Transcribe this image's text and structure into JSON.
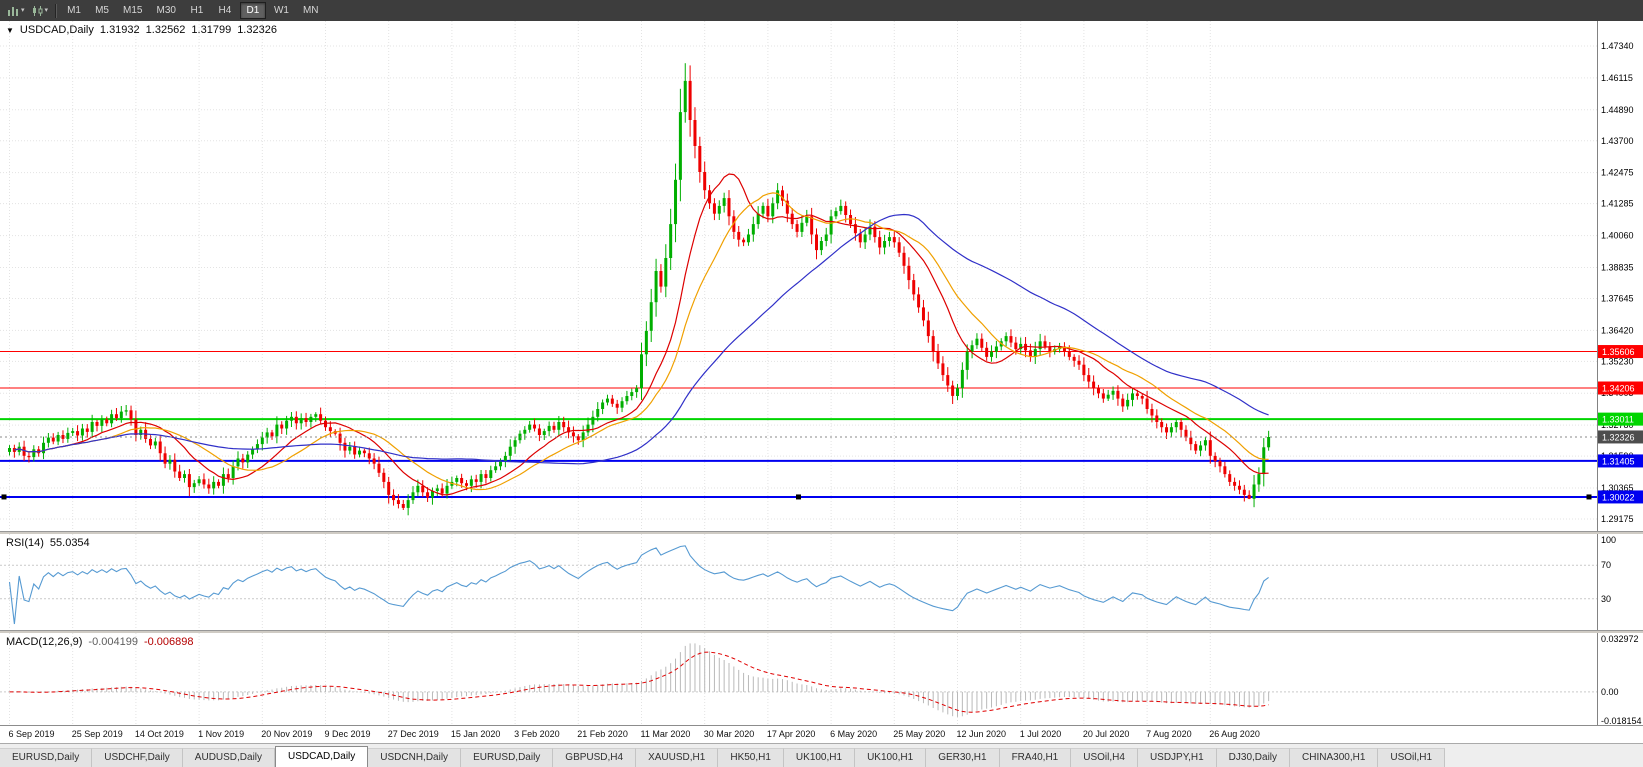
{
  "toolbar": {
    "timeframes": [
      "M1",
      "M5",
      "M15",
      "M30",
      "H1",
      "H4",
      "D1",
      "W1",
      "MN"
    ],
    "active_timeframe": "D1",
    "icons": [
      {
        "name": "bar-chart-icon"
      },
      {
        "name": "candlestick-chart-icon"
      }
    ]
  },
  "chart_header": {
    "menu_icon": "▼",
    "symbol": "USDCAD,Daily",
    "open": "1.31932",
    "high": "1.32562",
    "low": "1.31799",
    "close": "1.32326"
  },
  "chart_data": {
    "type": "candlestick",
    "symbol": "USDCAD",
    "timeframe": "Daily",
    "up_color": "#00AE00",
    "down_color": "#EE0000",
    "price_axis": {
      "min": 1.29175,
      "max": 1.4734,
      "ticks": [
        "1.47340",
        "1.46115",
        "1.44890",
        "1.43700",
        "1.42475",
        "1.41285",
        "1.40060",
        "1.38835",
        "1.37645",
        "1.36420",
        "1.35230",
        "1.34005",
        "1.32780",
        "1.31590",
        "1.30365",
        "1.29175"
      ]
    },
    "x_labels": [
      "6 Sep 2019",
      "25 Sep 2019",
      "14 Oct 2019",
      "1 Nov 2019",
      "20 Nov 2019",
      "9 Dec 2019",
      "27 Dec 2019",
      "15 Jan 2020",
      "3 Feb 2020",
      "21 Feb 2020",
      "11 Mar 2020",
      "30 Mar 2020",
      "17 Apr 2020",
      "6 May 2020",
      "25 May 2020",
      "12 Jun 2020",
      "1 Jul 2020",
      "20 Jul 2020",
      "7 Aug 2020",
      "26 Aug 2020"
    ],
    "bars_per_label": 13,
    "closes": [
      1.319,
      1.3175,
      1.3195,
      1.316,
      1.3155,
      1.3185,
      1.317,
      1.321,
      1.323,
      1.3215,
      1.324,
      1.3225,
      1.3248,
      1.3255,
      1.3238,
      1.3265,
      1.3252,
      1.329,
      1.3275,
      1.33,
      1.3285,
      1.332,
      1.3305,
      1.333,
      1.3335,
      1.33,
      1.324,
      1.326,
      1.3225,
      1.32,
      1.3215,
      1.317,
      1.313,
      1.3145,
      1.31,
      1.3075,
      1.309,
      1.304,
      1.3055,
      1.307,
      1.305,
      1.3035,
      1.306,
      1.3045,
      1.309,
      1.3075,
      1.312,
      1.315,
      1.3135,
      1.3165,
      1.3185,
      1.3205,
      1.323,
      1.325,
      1.3235,
      1.328,
      1.3265,
      1.3295,
      1.331,
      1.3285,
      1.3305,
      1.329,
      1.331,
      1.332,
      1.3295,
      1.327,
      1.3255,
      1.3245,
      1.321,
      1.318,
      1.3195,
      1.3165,
      1.318,
      1.317,
      1.315,
      1.313,
      1.3095,
      1.306,
      1.301,
      1.299,
      1.2975,
      1.296,
      1.299,
      1.302,
      1.3045,
      1.302,
      1.3,
      1.3025,
      1.3035,
      1.3015,
      1.3045,
      1.306,
      1.3075,
      1.3055,
      1.3045,
      1.307,
      1.306,
      1.309,
      1.3075,
      1.3105,
      1.312,
      1.314,
      1.316,
      1.3195,
      1.322,
      1.3245,
      1.326,
      1.328,
      1.3265,
      1.324,
      1.3255,
      1.3275,
      1.326,
      1.329,
      1.327,
      1.325,
      1.3235,
      1.322,
      1.325,
      1.328,
      1.331,
      1.334,
      1.3365,
      1.338,
      1.336,
      1.3345,
      1.337,
      1.339,
      1.3405,
      1.342,
      1.355,
      1.364,
      1.375,
      1.387,
      1.381,
      1.392,
      1.405,
      1.422,
      1.448,
      1.46,
      1.445,
      1.435,
      1.425,
      1.418,
      1.413,
      1.409,
      1.412,
      1.415,
      1.408,
      1.402,
      1.399,
      1.398,
      1.401,
      1.405,
      1.409,
      1.412,
      1.408,
      1.413,
      1.418,
      1.414,
      1.409,
      1.405,
      1.402,
      1.4055,
      1.408,
      1.401,
      1.395,
      1.3985,
      1.401,
      1.408,
      1.41,
      1.412,
      1.4085,
      1.405,
      1.4015,
      1.398,
      1.401,
      1.404,
      1.4,
      1.396,
      1.3985,
      1.4,
      1.398,
      1.394,
      1.389,
      1.3835,
      1.378,
      1.373,
      1.368,
      1.362,
      1.356,
      1.3515,
      1.347,
      1.343,
      1.339,
      1.342,
      1.349,
      1.356,
      1.3585,
      1.361,
      1.3575,
      1.354,
      1.356,
      1.358,
      1.36,
      1.362,
      1.3595,
      1.357,
      1.359,
      1.3565,
      1.354,
      1.357,
      1.36,
      1.358,
      1.356,
      1.357,
      1.358,
      1.356,
      1.354,
      1.3525,
      1.351,
      1.347,
      1.3445,
      1.342,
      1.34,
      1.338,
      1.3395,
      1.341,
      1.338,
      1.335,
      1.3375,
      1.34,
      1.339,
      1.338,
      1.334,
      1.3315,
      1.329,
      1.327,
      1.325,
      1.327,
      1.329,
      1.326,
      1.323,
      1.3205,
      1.318,
      1.32,
      1.322,
      1.316,
      1.314,
      1.312,
      1.309,
      1.306,
      1.3045,
      1.303,
      1.301,
      1.2995,
      1.305,
      1.309,
      1.3193,
      1.32326
    ],
    "last_bar": {
      "open": 1.31932,
      "high": 1.32562,
      "low": 1.31799,
      "close": 1.32326
    },
    "wick_overrides": {
      "81": {
        "low": 1.2952
      },
      "139": {
        "high": 1.4668
      },
      "255": {
        "low": 1.2994
      }
    },
    "ma_lines": [
      {
        "name": "fast-ma",
        "period": 13,
        "color": "#DD0000"
      },
      {
        "name": "mid-ma",
        "period": 21,
        "color": "#F0A000"
      },
      {
        "name": "slow-ma",
        "period": 50,
        "color": "#3030C8"
      }
    ],
    "hlines": [
      {
        "value": 1.35606,
        "label": "1.35606",
        "color": "#FF0000",
        "thickness": 1,
        "selected": false
      },
      {
        "value": 1.34206,
        "label": "1.34206",
        "color": "#FF0000",
        "thickness": 1,
        "selected": false
      },
      {
        "value": 1.33011,
        "label": "1.33011",
        "color": "#00D500",
        "thickness": 2,
        "selected": false
      },
      {
        "value": 1.31405,
        "label": "1.31405",
        "color": "#0000F0",
        "thickness": 2,
        "selected": false
      },
      {
        "value": 1.30022,
        "label": "1.30022",
        "color": "#0000F0",
        "thickness": 2,
        "selected": true
      }
    ],
    "current_price": {
      "value": 1.32326,
      "label": "1.32326",
      "label_bg": "#4d4d4d",
      "line_color": "#888888"
    }
  },
  "rsi_panel": {
    "label": "RSI(14)",
    "value": "55.0354",
    "period": 14,
    "line_color": "#569AD2",
    "range": [
      0,
      100
    ],
    "levels": [
      70,
      30
    ],
    "axis_labels": [
      {
        "text": "100",
        "value": 100
      },
      {
        "text": "70",
        "value": 70
      },
      {
        "text": "30",
        "value": 30
      }
    ]
  },
  "macd_panel": {
    "label": "MACD(12,26,9)",
    "main_value": "-0.004199",
    "signal_value": "-0.006898",
    "fast": 12,
    "slow": 26,
    "signal": 9,
    "histogram_color": "#b9b9b9",
    "signal_color": "#E00000",
    "range": [
      -0.018154,
      0.032972
    ],
    "axis_labels": [
      {
        "text": "0.032972",
        "value": 0.032972
      },
      {
        "text": "0.00",
        "value": 0
      },
      {
        "text": "-0.018154",
        "value": -0.018154
      }
    ]
  },
  "tabs": {
    "active_index": 3,
    "items": [
      "EURUSD,Daily",
      "USDCHF,Daily",
      "AUDUSD,Daily",
      "USDCAD,Daily",
      "USDCNH,Daily",
      "EURUSD,Daily",
      "GBPUSD,H4",
      "XAUUSD,H1",
      "HK50,H1",
      "UK100,H1",
      "UK100,H1",
      "GER30,H1",
      "FRA40,H1",
      "USOil,H4",
      "USDJPY,H1",
      "DJ30,Daily",
      "CHINA300,H1",
      "USOil,H1"
    ]
  }
}
